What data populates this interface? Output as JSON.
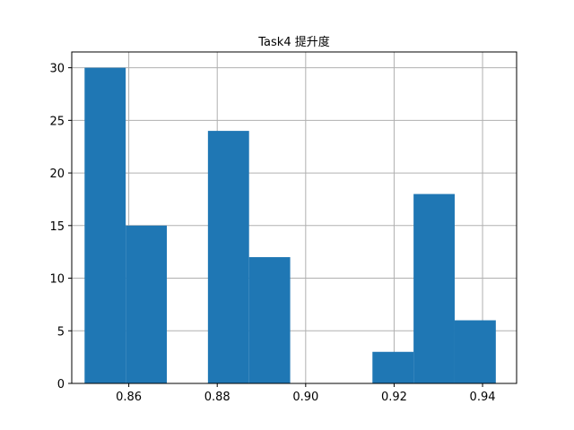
{
  "chart_data": {
    "type": "bar",
    "title": "Task4 提升度",
    "xlabel": "",
    "ylabel": "",
    "bins": [
      {
        "x0": 0.85,
        "x1": 0.8593,
        "count": 30
      },
      {
        "x0": 0.8593,
        "x1": 0.8686,
        "count": 15
      },
      {
        "x0": 0.8686,
        "x1": 0.8779,
        "count": 0
      },
      {
        "x0": 0.8779,
        "x1": 0.8872,
        "count": 24
      },
      {
        "x0": 0.8872,
        "x1": 0.8965,
        "count": 12
      },
      {
        "x0": 0.8965,
        "x1": 0.9058,
        "count": 0
      },
      {
        "x0": 0.9058,
        "x1": 0.9151,
        "count": 0
      },
      {
        "x0": 0.9151,
        "x1": 0.9244,
        "count": 3
      },
      {
        "x0": 0.9244,
        "x1": 0.9337,
        "count": 18
      },
      {
        "x0": 0.9337,
        "x1": 0.943,
        "count": 6
      }
    ],
    "xlim": [
      0.8471,
      0.9477
    ],
    "ylim": [
      0,
      31.5
    ],
    "xticks": [
      0.86,
      0.88,
      0.9,
      0.92,
      0.94
    ],
    "xtick_labels": [
      "0.86",
      "0.88",
      "0.90",
      "0.92",
      "0.94"
    ],
    "yticks": [
      0,
      5,
      10,
      15,
      20,
      25,
      30
    ],
    "ytick_labels": [
      "0",
      "5",
      "10",
      "15",
      "20",
      "25",
      "30"
    ],
    "grid": true,
    "bar_color": "#1f77b4",
    "grid_color": "#b0b0b0"
  }
}
